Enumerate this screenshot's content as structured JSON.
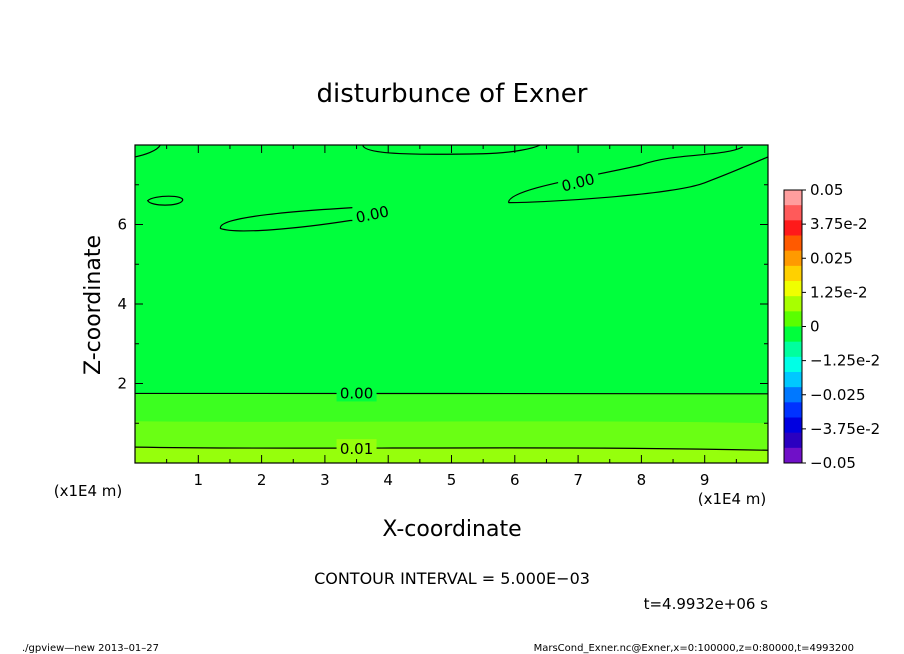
{
  "chart_data": {
    "type": "heatmap",
    "title": "disturbunce of Exner",
    "xlabel": "X-coordinate",
    "ylabel": "Z-coordinate",
    "x_unit_label": "(x1E4 m)",
    "y_unit_label": "(x1E4 m)",
    "xlim": [
      0,
      10
    ],
    "ylim": [
      0,
      8
    ],
    "x_ticks": [
      {
        "value": 1,
        "label": "1"
      },
      {
        "value": 2,
        "label": "2"
      },
      {
        "value": 3,
        "label": "3"
      },
      {
        "value": 4,
        "label": "4"
      },
      {
        "value": 5,
        "label": "5"
      },
      {
        "value": 6,
        "label": "6"
      },
      {
        "value": 7,
        "label": "7"
      },
      {
        "value": 8,
        "label": "8"
      },
      {
        "value": 9,
        "label": "9"
      }
    ],
    "y_ticks": [
      {
        "value": 2,
        "label": "2"
      },
      {
        "value": 4,
        "label": "4"
      },
      {
        "value": 6,
        "label": "6"
      }
    ],
    "contour_labels": [
      {
        "text": "0.00",
        "x": 7.0,
        "y": 7.05
      },
      {
        "text": "0.00",
        "x": 3.75,
        "y": 6.25
      },
      {
        "text": "0.00",
        "x": 3.5,
        "y": 1.75
      },
      {
        "text": "0.01",
        "x": 3.5,
        "y": 0.35
      }
    ],
    "colorbar": {
      "labels": [
        "0.05",
        "3.75e-2",
        "0.025",
        "1.25e-2",
        "0",
        "−1.25e-2",
        "−0.025",
        "−3.75e-2",
        "−0.05"
      ],
      "colors_top_to_bottom": [
        "#ff9e9e",
        "#ff5a5a",
        "#ff1a1a",
        "#ff5a00",
        "#ff9a00",
        "#ffd000",
        "#f0ff00",
        "#a8ff00",
        "#5aff00",
        "#00ff3c",
        "#00ff9e",
        "#00ffe6",
        "#00c8ff",
        "#0078ff",
        "#0032ff",
        "#0000e0",
        "#2a00c0",
        "#7010c8"
      ]
    },
    "contour_interval": "CONTOUR INTERVAL = 5.000E−03",
    "time_label": "t=4.9932e+06 s"
  },
  "footer": {
    "left": "./gpview—new   2013–01–27",
    "right": "MarsCond_Exner.nc@Exner,x=0:100000,z=0:80000,t=4993200"
  },
  "colors": {
    "field": "#00ff3c",
    "low_band_1": "#3cff20",
    "low_band_2": "#6aff14",
    "low_band_3": "#96ff0c"
  }
}
